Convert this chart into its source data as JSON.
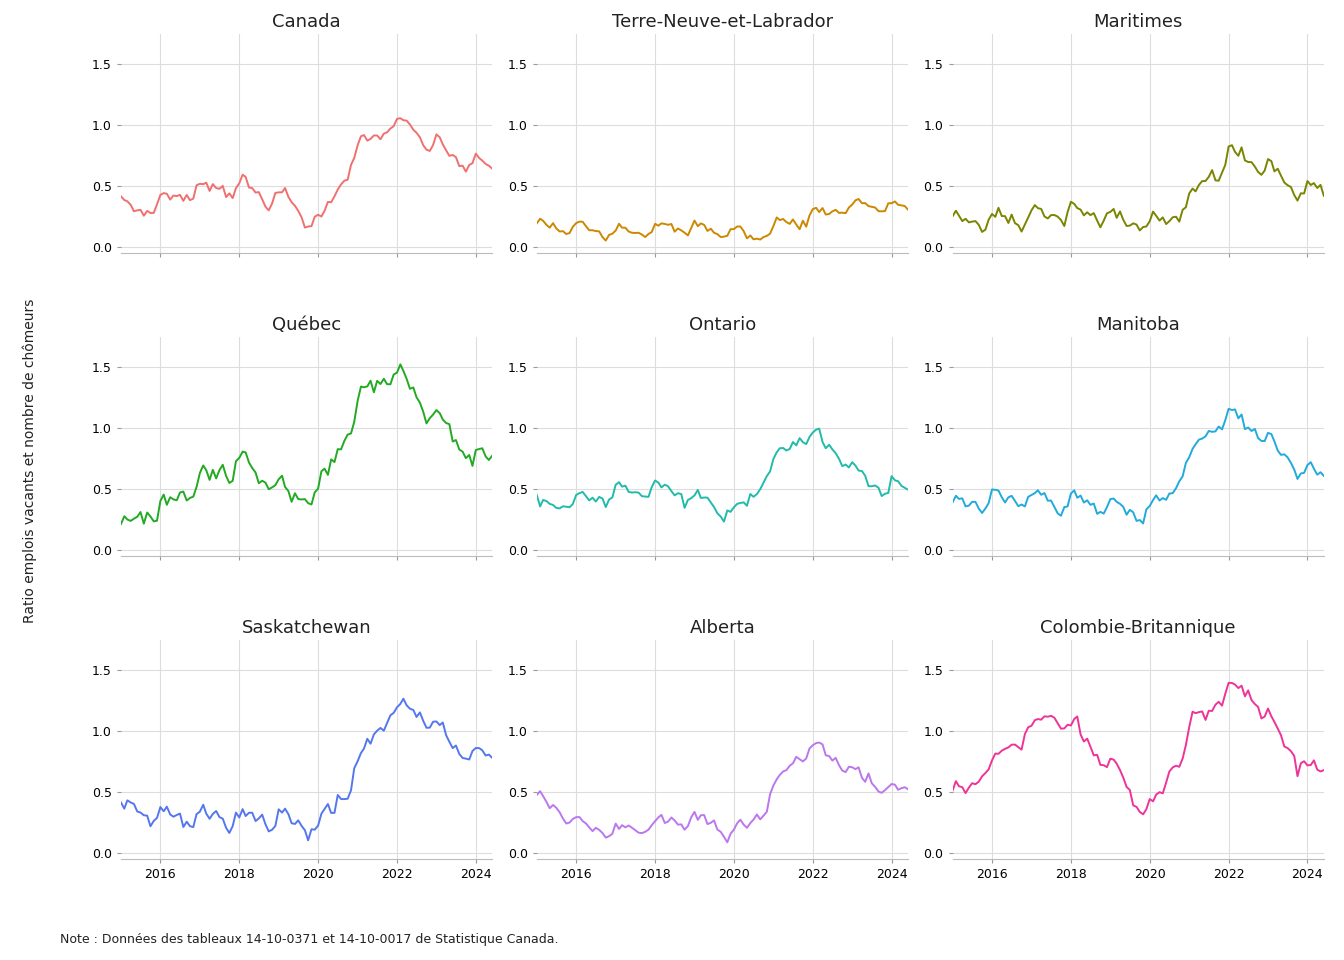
{
  "ylabel": "Ratio emplois vacants et nombre de chômeurs",
  "note": "Note : Données des tableaux 14-10-0371 et 14-10-0017 de Statistique Canada.",
  "panels": [
    {
      "name": "Canada",
      "color": "#F07070"
    },
    {
      "name": "Terre-Neuve-et-Labrador",
      "color": "#CC8800"
    },
    {
      "name": "Maritimes",
      "color": "#7A8500"
    },
    {
      "name": "Québec",
      "color": "#22AA22"
    },
    {
      "name": "Ontario",
      "color": "#22BBAA"
    },
    {
      "name": "Manitoba",
      "color": "#22AADD"
    },
    {
      "name": "Saskatchewan",
      "color": "#5577EE"
    },
    {
      "name": "Alberta",
      "color": "#BB77EE"
    },
    {
      "name": "Colombie-Britannique",
      "color": "#EE3399"
    }
  ],
  "ylim": [
    -0.05,
    1.75
  ],
  "yticks": [
    0.0,
    0.5,
    1.0,
    1.5
  ],
  "ytick_labels": [
    "0.0",
    "0.5",
    "1.0",
    "1.5"
  ],
  "background_color": "#FFFFFF",
  "grid_color": "#DDDDDD",
  "title_fontsize": 13,
  "tick_fontsize": 9,
  "ylabel_fontsize": 10,
  "note_fontsize": 9,
  "linewidth": 1.4
}
